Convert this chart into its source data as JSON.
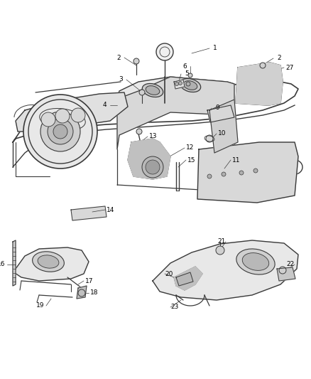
{
  "bg_color": "#ffffff",
  "line_color": "#3a3a3a",
  "label_color": "#000000",
  "fig_width": 4.38,
  "fig_height": 5.33,
  "dpi": 100,
  "top_section": {
    "ymin": 0.52,
    "ymax": 1.0
  },
  "bottom_left": {
    "xmin": 0.0,
    "xmax": 0.42,
    "ymin": 0.0,
    "ymax": 0.47
  },
  "bottom_right": {
    "xmin": 0.42,
    "xmax": 1.0,
    "ymin": 0.0,
    "ymax": 0.47
  }
}
